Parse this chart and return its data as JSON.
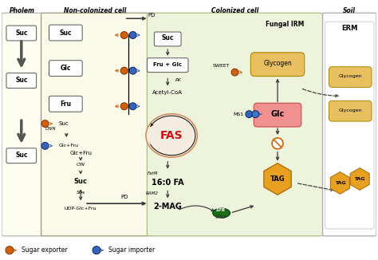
{
  "bg_color": "#ffffff",
  "phloem_label": "Pholem",
  "non_col_label": "Non-colonized cell",
  "col_label": "Colonized cell",
  "soil_label": "Soil",
  "erm_label": "ERM",
  "fungal_irm_label": "Fungal IRM",
  "fas_label": "FAS",
  "legend_exporter": "Sugar exporter",
  "legend_importer": "Sugar importer",
  "orange_color": "#d4600a",
  "blue_color": "#3366bb",
  "red_fas": "#cc1111",
  "green_str": "#1a6e1a",
  "tag_color": "#e8a020",
  "glycogen_color": "#e8c060",
  "glc_color": "#f09090",
  "nc_bg": "#fafae8",
  "col_bg": "#eef4dc",
  "fungal_bg": "#d4e8a8",
  "phloem_bg": "#fdfdf0"
}
